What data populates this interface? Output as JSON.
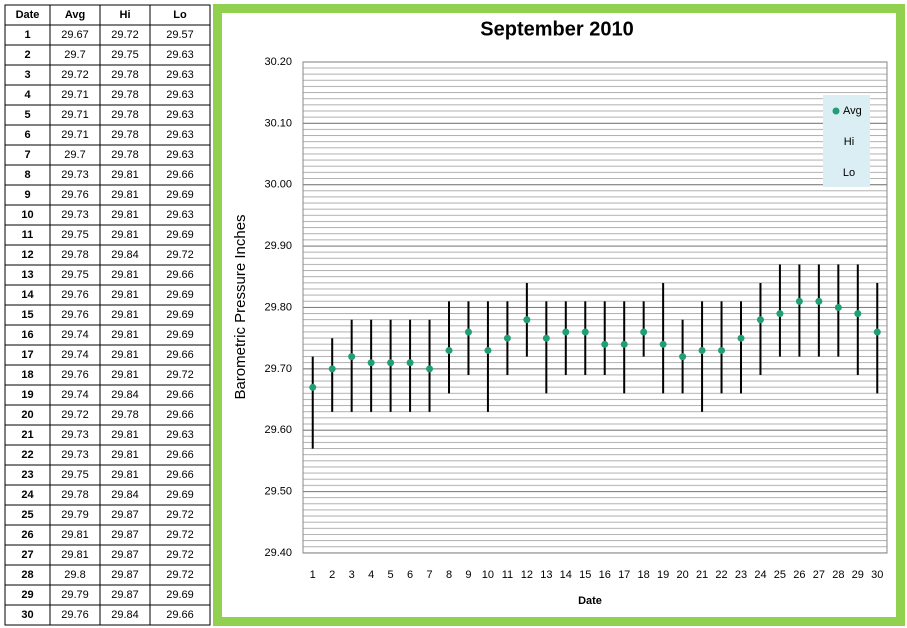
{
  "table": {
    "columns": [
      "Date",
      "Avg",
      "Hi",
      "Lo"
    ],
    "rows": [
      [
        1,
        29.67,
        29.72,
        29.57
      ],
      [
        2,
        29.7,
        29.75,
        29.63
      ],
      [
        3,
        29.72,
        29.78,
        29.63
      ],
      [
        4,
        29.71,
        29.78,
        29.63
      ],
      [
        5,
        29.71,
        29.78,
        29.63
      ],
      [
        6,
        29.71,
        29.78,
        29.63
      ],
      [
        7,
        29.7,
        29.78,
        29.63
      ],
      [
        8,
        29.73,
        29.81,
        29.66
      ],
      [
        9,
        29.76,
        29.81,
        29.69
      ],
      [
        10,
        29.73,
        29.81,
        29.63
      ],
      [
        11,
        29.75,
        29.81,
        29.69
      ],
      [
        12,
        29.78,
        29.84,
        29.72
      ],
      [
        13,
        29.75,
        29.81,
        29.66
      ],
      [
        14,
        29.76,
        29.81,
        29.69
      ],
      [
        15,
        29.76,
        29.81,
        29.69
      ],
      [
        16,
        29.74,
        29.81,
        29.69
      ],
      [
        17,
        29.74,
        29.81,
        29.66
      ],
      [
        18,
        29.76,
        29.81,
        29.72
      ],
      [
        19,
        29.74,
        29.84,
        29.66
      ],
      [
        20,
        29.72,
        29.78,
        29.66
      ],
      [
        21,
        29.73,
        29.81,
        29.63
      ],
      [
        22,
        29.73,
        29.81,
        29.66
      ],
      [
        23,
        29.75,
        29.81,
        29.66
      ],
      [
        24,
        29.78,
        29.84,
        29.69
      ],
      [
        25,
        29.79,
        29.87,
        29.72
      ],
      [
        26,
        29.81,
        29.87,
        29.72
      ],
      [
        27,
        29.81,
        29.87,
        29.72
      ],
      [
        28,
        29.8,
        29.87,
        29.72
      ],
      [
        29,
        29.79,
        29.87,
        29.69
      ],
      [
        30,
        29.76,
        29.84,
        29.66
      ]
    ]
  },
  "chart_data": {
    "type": "hilo",
    "title": "September 2010",
    "x_label": "Date",
    "y_label": "Barometric Pressure Inches",
    "categories": [
      1,
      2,
      3,
      4,
      5,
      6,
      7,
      8,
      9,
      10,
      11,
      12,
      13,
      14,
      15,
      16,
      17,
      18,
      19,
      20,
      21,
      22,
      23,
      24,
      25,
      26,
      27,
      28,
      29,
      30
    ],
    "series": [
      {
        "name": "Avg",
        "color": "#1f9e77",
        "values": [
          29.67,
          29.7,
          29.72,
          29.71,
          29.71,
          29.71,
          29.7,
          29.73,
          29.76,
          29.73,
          29.75,
          29.78,
          29.75,
          29.76,
          29.76,
          29.74,
          29.74,
          29.76,
          29.74,
          29.72,
          29.73,
          29.73,
          29.75,
          29.78,
          29.79,
          29.81,
          29.81,
          29.8,
          29.79,
          29.76
        ]
      },
      {
        "name": "Hi",
        "values": [
          29.72,
          29.75,
          29.78,
          29.78,
          29.78,
          29.78,
          29.78,
          29.81,
          29.81,
          29.81,
          29.81,
          29.84,
          29.81,
          29.81,
          29.81,
          29.81,
          29.81,
          29.81,
          29.84,
          29.78,
          29.81,
          29.81,
          29.81,
          29.84,
          29.87,
          29.87,
          29.87,
          29.87,
          29.87,
          29.84
        ]
      },
      {
        "name": "Lo",
        "values": [
          29.57,
          29.63,
          29.63,
          29.63,
          29.63,
          29.63,
          29.63,
          29.66,
          29.69,
          29.63,
          29.69,
          29.72,
          29.66,
          29.69,
          29.69,
          29.69,
          29.66,
          29.72,
          29.66,
          29.66,
          29.63,
          29.66,
          29.66,
          29.69,
          29.72,
          29.72,
          29.72,
          29.72,
          29.69,
          29.66
        ]
      }
    ],
    "hilo_color": "#000000",
    "ylim": [
      29.4,
      30.2
    ],
    "yticks": [
      {
        "value": 29.4,
        "label": "29.40"
      },
      {
        "value": 29.5,
        "label": "29.50"
      },
      {
        "value": 29.6,
        "label": "29.60"
      },
      {
        "value": 29.7,
        "label": "29.70"
      },
      {
        "value": 29.8,
        "label": "29.80"
      },
      {
        "value": 29.9,
        "label": "29.90"
      },
      {
        "value": 30.0,
        "label": "30.00"
      },
      {
        "value": 30.1,
        "label": "30.10"
      },
      {
        "value": 30.2,
        "label": "30.20"
      }
    ],
    "grid": true,
    "legend": "upper right",
    "frame_color": "#92d050"
  }
}
